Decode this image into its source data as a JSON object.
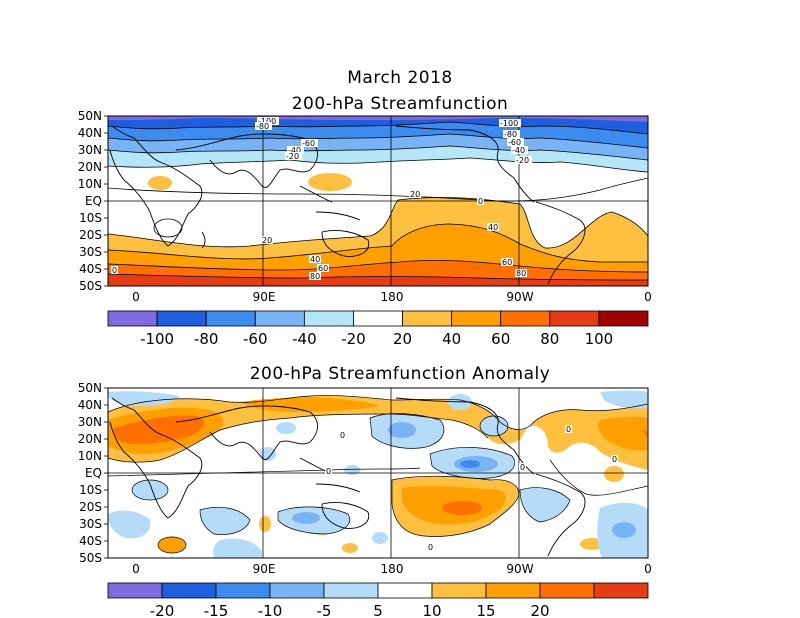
{
  "title": "March 2018",
  "chart_data": [
    {
      "type": "heatmap",
      "title": "200-hPa Streamfunction",
      "x_ticks": [
        "0",
        "90E",
        "180",
        "90W",
        "0"
      ],
      "y_ticks": [
        "50N",
        "40N",
        "30N",
        "20N",
        "10N",
        "EQ",
        "10S",
        "20S",
        "30S",
        "40S",
        "50S"
      ],
      "colorbar": {
        "labels": [
          "-100",
          "-80",
          "-60",
          "-40",
          "-20",
          "20",
          "40",
          "60",
          "80",
          "100"
        ],
        "colors": [
          "#7f6ae0",
          "#1e5fe0",
          "#3c8cf0",
          "#78b4f5",
          "#b4e6f8",
          "#ffffff",
          "#ffc040",
          "#ffa000",
          "#ff7000",
          "#e63c14",
          "#a00000"
        ]
      },
      "contour_labels": [
        "-100",
        "-80",
        "-60",
        "-40",
        "-20",
        "20",
        "40",
        "60",
        "80",
        "0",
        "-100",
        "-80",
        "-60",
        "-40",
        "-20",
        "20",
        "40",
        "60",
        "80",
        "0"
      ]
    },
    {
      "type": "heatmap",
      "title": "200-hPa Streamfunction Anomaly",
      "x_ticks": [
        "0",
        "90E",
        "180",
        "90W",
        "0"
      ],
      "y_ticks": [
        "50N",
        "40N",
        "30N",
        "20N",
        "10N",
        "EQ",
        "10S",
        "20S",
        "30S",
        "40S",
        "50S"
      ],
      "colorbar": {
        "labels": [
          "-20",
          "-15",
          "-10",
          "-5",
          "5",
          "10",
          "15",
          "20"
        ],
        "colors": [
          "#7f6ae0",
          "#1e5fe0",
          "#3c8cf0",
          "#78b4f5",
          "#b4dcf8",
          "#ffffff",
          "#ffc040",
          "#ffa000",
          "#ff7000",
          "#e63c14"
        ]
      },
      "contour_labels": [
        "0",
        "0",
        "0",
        "0",
        "0",
        "0"
      ]
    }
  ]
}
